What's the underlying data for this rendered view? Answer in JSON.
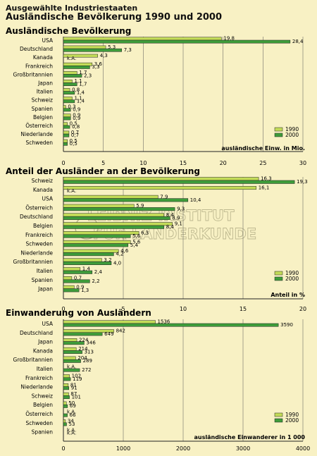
{
  "header": {
    "supertitle": "Ausgewählte Industriestaaten",
    "title": "Ausländische Bevölkerung 1990 und 2000"
  },
  "watermark": "LEIBNIZ-INSTITUT FÜR LÄNDERKUNDE",
  "colors": {
    "background": "#f8f1c4",
    "bar_1990": "#c3dc58",
    "bar_2000": "#3e9c3a",
    "outline": "#222222"
  },
  "chart_data": [
    {
      "type": "bar",
      "orientation": "horizontal",
      "title": "Ausländische Bevölkerung",
      "xlabel": "ausländische Einw. in Mio.",
      "xlim": [
        0,
        30
      ],
      "xticks": [
        0,
        5,
        10,
        15,
        20,
        25,
        30
      ],
      "legend": {
        "position": "bottom-right",
        "entries": [
          "1990",
          "2000"
        ]
      },
      "categories": [
        "USA",
        "Deutschland",
        "Kanada",
        "Frankreich",
        "Großbritannien",
        "Japan",
        "Italien",
        "Schweiz",
        "Spanien",
        "Belgien",
        "Österreich",
        "Niederlande",
        "Schweden"
      ],
      "series": [
        {
          "name": "1990",
          "values": [
            19.8,
            5.3,
            4.3,
            3.6,
            1.7,
            1.1,
            0.8,
            1.1,
            0.3,
            0.9,
            0.5,
            0.7,
            0.5
          ],
          "labels": [
            "19,8",
            "5,3",
            "4,3",
            "3,6",
            "1,7",
            "1,1",
            "0,8",
            "1,1",
            "0,3",
            "0,9",
            "0,5",
            "0,7",
            "0,5"
          ]
        },
        {
          "name": "2000",
          "values": [
            28.4,
            7.3,
            null,
            3.3,
            2.3,
            1.7,
            1.4,
            1.4,
            0.9,
            0.9,
            0.8,
            0.7,
            0.5
          ],
          "labels": [
            "28,4",
            "7,3",
            "k.A.",
            "3,3",
            "2,3",
            "1,7",
            "1,4",
            "1,4",
            "0,9",
            "0,9",
            "0,8",
            "0,7",
            "0,5"
          ]
        }
      ]
    },
    {
      "type": "bar",
      "orientation": "horizontal",
      "title": "Anteil der Ausländer an der Bevölkerung",
      "xlabel": "Anteil in %",
      "xlim": [
        0,
        20
      ],
      "xticks": [
        0,
        5,
        10,
        15,
        20
      ],
      "legend": {
        "position": "bottom-right",
        "entries": [
          "1990",
          "2000"
        ]
      },
      "categories": [
        "Schweiz",
        "Kanada",
        "USA",
        "Österreich",
        "Deutschland",
        "Belgien",
        "Frankreich",
        "Schweden",
        "Niederlande",
        "Großbritannien",
        "Italien",
        "Spanien",
        "Japan"
      ],
      "series": [
        {
          "name": "1990",
          "values": [
            16.3,
            16.1,
            7.9,
            5.9,
            8.4,
            9.1,
            6.3,
            5.6,
            4.6,
            3.2,
            1.4,
            0.7,
            0.9
          ],
          "labels": [
            "16,3",
            "16,1",
            "7,9",
            "5,9",
            "8,4",
            "9,1",
            "6,3",
            "5,6",
            "4,6",
            "3,2",
            "1,4",
            "0,7",
            "0,9"
          ]
        },
        {
          "name": "2000",
          "values": [
            19.3,
            null,
            10.4,
            9.3,
            8.9,
            8.4,
            5.6,
            5.4,
            4.2,
            4.0,
            2.4,
            2.2,
            1.3
          ],
          "labels": [
            "19,3",
            "k.A.",
            "10,4",
            "9,3",
            "8,9",
            "8,4",
            "5,6",
            "5,4",
            "4,2",
            "4,0",
            "2,4",
            "2,2",
            "1,3"
          ]
        }
      ]
    },
    {
      "type": "bar",
      "orientation": "horizontal",
      "title": "Einwanderung von Ausländern",
      "xlabel": "ausländische Einwanderer in 1 000",
      "xlim": [
        0,
        4000
      ],
      "xticks": [
        0,
        1000,
        2000,
        3000,
        4000
      ],
      "legend": {
        "position": "bottom-right",
        "entries": [
          "1990",
          "2000"
        ]
      },
      "categories": [
        "USA",
        "Deutschland",
        "Japan",
        "Kanada",
        "Großbritannien",
        "Italien",
        "Frankreich",
        "Niederlande",
        "Schweiz",
        "Belgien",
        "Österreich",
        "Schweden",
        "Spanien"
      ],
      "series": [
        {
          "name": "1990",
          "values": [
            1536,
            842,
            224,
            214,
            204,
            null,
            102,
            81,
            87,
            50,
            null,
            34,
            null
          ],
          "labels": [
            "1536",
            "842",
            "224",
            "214",
            "204",
            "k.A.",
            "102",
            "81",
            "87",
            "50",
            "k.A.",
            "34",
            "k.A."
          ]
        },
        {
          "name": "2000",
          "values": [
            3590,
            649,
            346,
            313,
            289,
            272,
            119,
            91,
            101,
            69,
            66,
            53,
            null
          ],
          "labels": [
            "3590",
            "649",
            "346",
            "313",
            "289",
            "272",
            "119",
            "91",
            "101",
            "69",
            "66",
            "53",
            "k.A."
          ]
        }
      ]
    }
  ]
}
